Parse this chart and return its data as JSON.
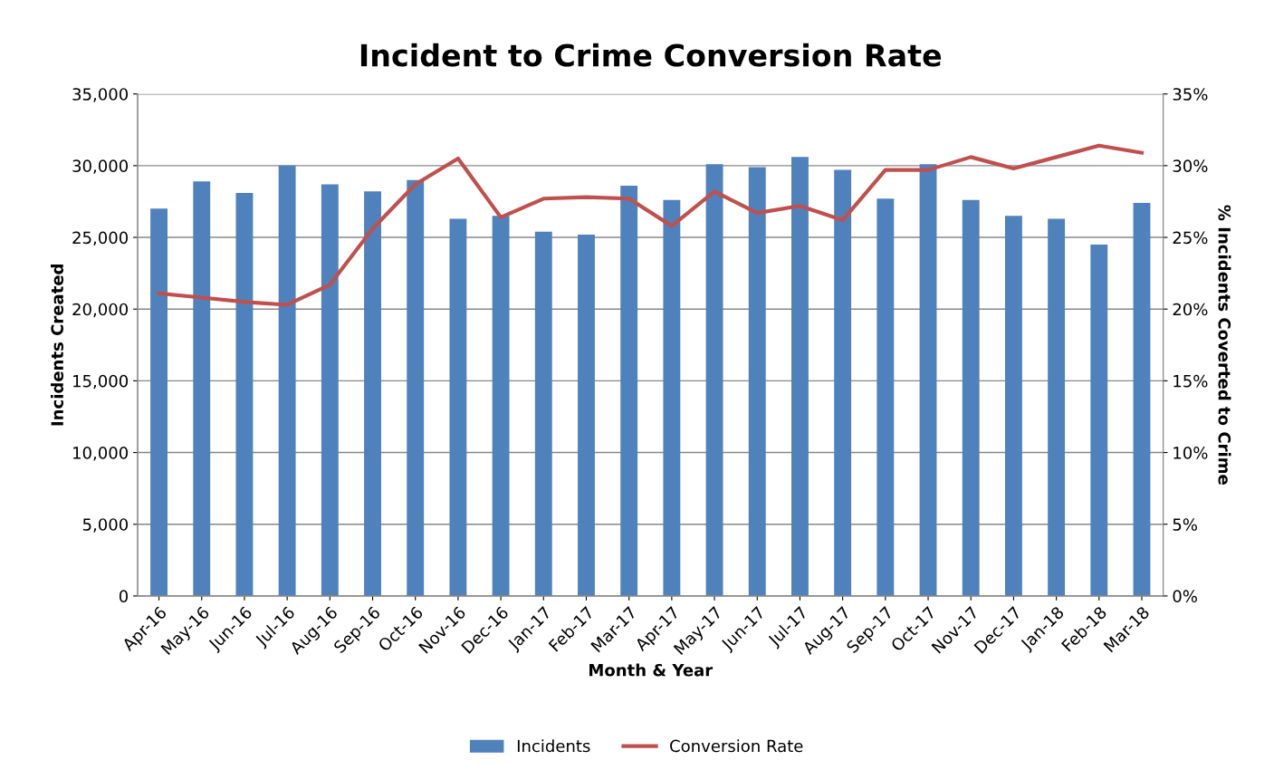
{
  "chart_data": {
    "type": "bar",
    "title": "Incident to Crime Conversion Rate",
    "xlabel": "Month & Year",
    "ylabel": "Incidents Created",
    "y2label": "% Incidents Coverted to Crime",
    "categories": [
      "Apr-16",
      "May-16",
      "Jun-16",
      "Jul-16",
      "Aug-16",
      "Sep-16",
      "Oct-16",
      "Nov-16",
      "Dec-16",
      "Jan-17",
      "Feb-17",
      "Mar-17",
      "Apr-17",
      "May-17",
      "Jun-17",
      "Jul-17",
      "Aug-17",
      "Sep-17",
      "Oct-17",
      "Nov-17",
      "Dec-17",
      "Jan-18",
      "Feb-18",
      "Mar-18"
    ],
    "series": [
      {
        "name": "Incidents",
        "color": "#4f81bd",
        "values": [
          27000,
          28900,
          28100,
          30000,
          28700,
          28200,
          29000,
          26300,
          26500,
          25400,
          25200,
          28600,
          27600,
          30100,
          29900,
          30600,
          29700,
          27700,
          30100,
          27600,
          26500,
          26300,
          24500,
          27400
        ]
      },
      {
        "name": "Conversion Rate",
        "type": "line",
        "axis": "y2",
        "color": "#c0504d",
        "values": [
          21.1,
          20.8,
          20.5,
          20.3,
          21.7,
          25.6,
          28.7,
          30.5,
          26.4,
          27.7,
          27.8,
          27.7,
          25.8,
          28.2,
          26.7,
          27.2,
          26.2,
          29.7,
          29.7,
          30.6,
          29.8,
          30.6,
          31.4,
          30.9
        ]
      }
    ],
    "ylim": [
      0,
      35000
    ],
    "yticks": [
      {
        "value": 0,
        "label": "0"
      },
      {
        "value": 5000,
        "label": "5,000"
      },
      {
        "value": 10000,
        "label": "10,000"
      },
      {
        "value": 15000,
        "label": "15,000"
      },
      {
        "value": 20000,
        "label": "20,000"
      },
      {
        "value": 25000,
        "label": "25,000"
      },
      {
        "value": 30000,
        "label": "30,000"
      },
      {
        "value": 35000,
        "label": "35,000"
      }
    ],
    "y2lim": [
      0,
      35
    ],
    "y2ticks": [
      {
        "value": 0,
        "label": "0%"
      },
      {
        "value": 5,
        "label": "5%"
      },
      {
        "value": 10,
        "label": "10%"
      },
      {
        "value": 15,
        "label": "15%"
      },
      {
        "value": 20,
        "label": "20%"
      },
      {
        "value": 25,
        "label": "25%"
      },
      {
        "value": 30,
        "label": "30%"
      },
      {
        "value": 35,
        "label": "35%"
      }
    ],
    "grid": "y",
    "legend": "bottom",
    "marker": "none",
    "line_style": "solid"
  }
}
